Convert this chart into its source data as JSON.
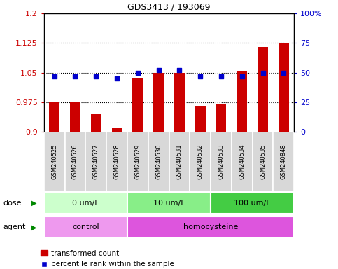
{
  "title": "GDS3413 / 193069",
  "samples": [
    "GSM240525",
    "GSM240526",
    "GSM240527",
    "GSM240528",
    "GSM240529",
    "GSM240530",
    "GSM240531",
    "GSM240532",
    "GSM240533",
    "GSM240534",
    "GSM240535",
    "GSM240848"
  ],
  "bar_values": [
    0.975,
    0.975,
    0.945,
    0.91,
    1.035,
    1.05,
    1.05,
    0.965,
    0.972,
    1.055,
    1.115,
    1.125
  ],
  "dot_values": [
    47,
    47,
    47,
    45,
    50,
    52,
    52,
    47,
    47,
    47,
    50,
    50
  ],
  "bar_color": "#cc0000",
  "dot_color": "#0000cc",
  "ylim_left": [
    0.9,
    1.2
  ],
  "ylim_right": [
    0,
    100
  ],
  "yticks_left": [
    0.9,
    0.975,
    1.05,
    1.125,
    1.2
  ],
  "yticks_right": [
    0,
    25,
    50,
    75,
    100
  ],
  "ytick_labels_left": [
    "0.9",
    "0.975",
    "1.05",
    "1.125",
    "1.2"
  ],
  "ytick_labels_right": [
    "0",
    "25",
    "50",
    "75",
    "100%"
  ],
  "hlines": [
    0.975,
    1.05,
    1.125
  ],
  "dose_groups": [
    {
      "label": "0 um/L",
      "start": 0,
      "end": 4,
      "color": "#ccffcc"
    },
    {
      "label": "10 um/L",
      "start": 4,
      "end": 8,
      "color": "#88ee88"
    },
    {
      "label": "100 um/L",
      "start": 8,
      "end": 12,
      "color": "#44cc44"
    }
  ],
  "agent_groups": [
    {
      "label": "control",
      "start": 0,
      "end": 4,
      "color": "#ee99ee"
    },
    {
      "label": "homocysteine",
      "start": 4,
      "end": 12,
      "color": "#dd55dd"
    }
  ],
  "sample_box_color": "#d8d8d8",
  "dose_label": "dose",
  "agent_label": "agent",
  "legend_bar_label": "transformed count",
  "legend_dot_label": "percentile rank within the sample",
  "tick_label_color_left": "#cc0000",
  "tick_label_color_right": "#0000cc",
  "arrow_color": "#008800"
}
